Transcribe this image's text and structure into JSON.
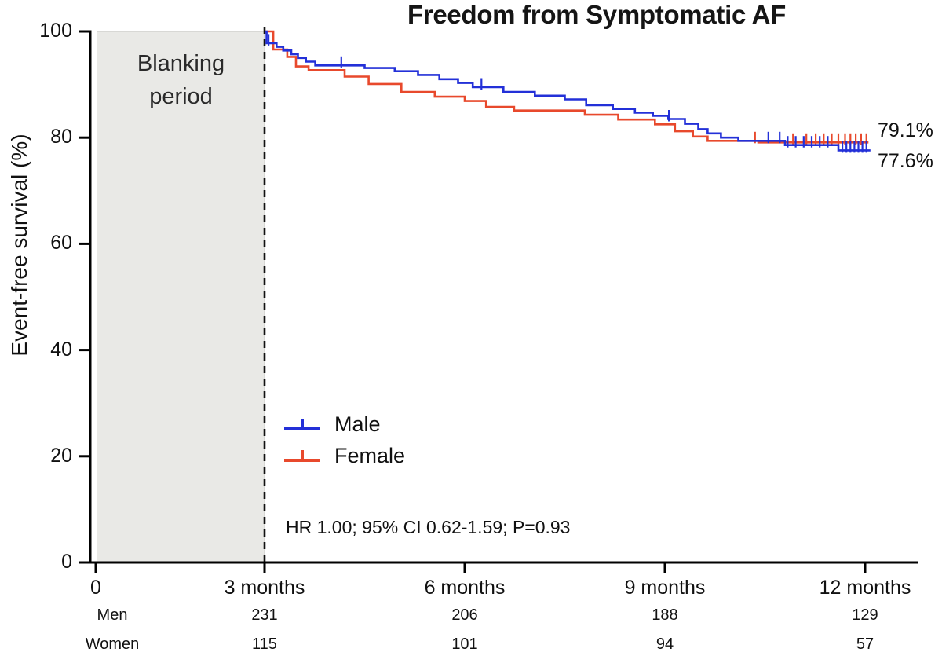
{
  "title": "Freedom from Symptomatic AF",
  "y_axis": {
    "label": "Event-free survival (%)",
    "ticks": [
      0,
      20,
      40,
      60,
      80,
      100
    ]
  },
  "x_axis": {
    "tick_months": [
      0,
      3,
      6,
      9,
      12
    ],
    "tick_labels": [
      "0",
      "3 months",
      "6 months",
      "9 months",
      "12 months"
    ]
  },
  "blanking": {
    "line1": "Blanking",
    "line2": "period",
    "start_month": 0,
    "end_month": 3,
    "fill": "#e9e9e6"
  },
  "legend": [
    {
      "name": "Male",
      "color": "#2330d8"
    },
    {
      "name": "Female",
      "color": "#e8492c"
    }
  ],
  "annotation": "HR 1.00; 95% CI 0.62-1.59; P=0.93",
  "end_labels": {
    "female": "79.1%",
    "male": "77.6%"
  },
  "risk_table": {
    "rows": [
      {
        "label": "Men",
        "counts": [
          "231",
          "206",
          "188",
          "129"
        ]
      },
      {
        "label": "Women",
        "counts": [
          "115",
          "101",
          "94",
          "57"
        ]
      }
    ]
  },
  "chart_data": {
    "type": "line",
    "subtype": "kaplan-meier-step",
    "title": "Freedom from Symptomatic AF",
    "ylabel": "Event-free survival (%)",
    "ylim": [
      0,
      100
    ],
    "xlim_months": [
      0,
      12.3
    ],
    "grid": false,
    "legend_position": "inside-lower-left",
    "blanking_period_months": [
      0,
      3
    ],
    "annotation": "HR 1.00; 95% CI 0.62-1.59; P=0.93",
    "series": [
      {
        "name": "Female",
        "color": "#e8492c",
        "final_value_pct": 79.1,
        "final_label": "79.1%",
        "end_month": 12.05,
        "steps": [
          [
            3.0,
            100
          ],
          [
            3.13,
            96.6
          ],
          [
            3.34,
            95.2
          ],
          [
            3.47,
            93.4
          ],
          [
            3.66,
            92.7
          ],
          [
            4.2,
            91.5
          ],
          [
            4.56,
            90.1
          ],
          [
            5.05,
            88.6
          ],
          [
            5.55,
            87.7
          ],
          [
            6.0,
            86.9
          ],
          [
            6.32,
            85.8
          ],
          [
            6.74,
            85.1
          ],
          [
            7.8,
            84.3
          ],
          [
            8.3,
            83.4
          ],
          [
            8.85,
            82.5
          ],
          [
            9.15,
            81.2
          ],
          [
            9.42,
            80.2
          ],
          [
            9.64,
            79.4
          ],
          [
            10.4,
            79.1
          ]
        ],
        "censor_months": [
          10.35,
          10.92,
          11.12,
          11.26,
          11.38,
          11.5,
          11.6,
          11.7,
          11.78,
          11.86,
          11.94,
          12.02
        ]
      },
      {
        "name": "Male",
        "color": "#2330d8",
        "final_value_pct": 77.6,
        "final_label": "77.6%",
        "end_month": 12.08,
        "steps": [
          [
            3.0,
            100
          ],
          [
            3.03,
            97.8
          ],
          [
            3.18,
            97.1
          ],
          [
            3.28,
            96.4
          ],
          [
            3.4,
            95.7
          ],
          [
            3.5,
            95.0
          ],
          [
            3.62,
            94.3
          ],
          [
            3.76,
            93.6
          ],
          [
            4.5,
            93.1
          ],
          [
            4.95,
            92.5
          ],
          [
            5.3,
            91.8
          ],
          [
            5.62,
            91.0
          ],
          [
            5.9,
            90.3
          ],
          [
            6.12,
            89.5
          ],
          [
            6.58,
            88.6
          ],
          [
            7.05,
            87.9
          ],
          [
            7.5,
            87.2
          ],
          [
            7.82,
            86.1
          ],
          [
            8.22,
            85.4
          ],
          [
            8.55,
            84.7
          ],
          [
            8.82,
            84.1
          ],
          [
            9.05,
            83.5
          ],
          [
            9.3,
            82.6
          ],
          [
            9.5,
            81.6
          ],
          [
            9.64,
            80.8
          ],
          [
            9.84,
            80.0
          ],
          [
            10.1,
            79.4
          ],
          [
            10.8,
            78.6
          ],
          [
            11.6,
            77.6
          ]
        ],
        "censor_months": [
          3.06,
          4.15,
          6.25,
          9.06,
          10.55,
          10.72,
          10.84,
          10.96,
          11.08,
          11.2,
          11.32,
          11.44,
          11.66,
          11.72,
          11.78,
          11.84,
          11.9,
          11.96,
          12.02
        ]
      }
    ],
    "at_risk": {
      "months": [
        3,
        6,
        9,
        12
      ],
      "rows": [
        {
          "label": "Men",
          "counts": [
            231,
            206,
            188,
            129
          ]
        },
        {
          "label": "Women",
          "counts": [
            115,
            101,
            94,
            57
          ]
        }
      ]
    }
  }
}
